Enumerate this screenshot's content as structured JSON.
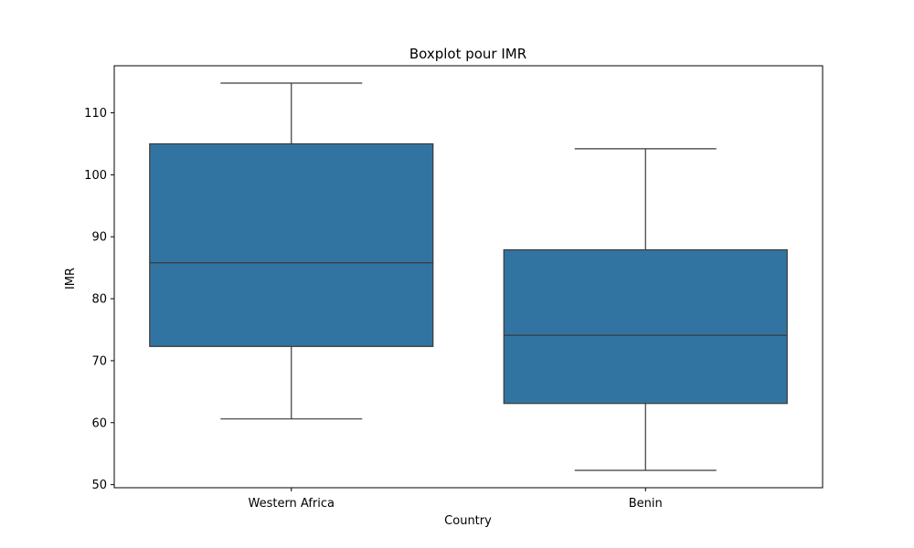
{
  "chart_data": {
    "type": "boxplot",
    "title": "Boxplot pour IMR",
    "xlabel": "Country",
    "ylabel": "IMR",
    "ylim": [
      49.5,
      117.6
    ],
    "yticks": [
      50,
      60,
      70,
      80,
      90,
      100,
      110
    ],
    "grid": false,
    "box_color": "#3274a1",
    "line_color": "#3a3a3a",
    "categories": [
      "Western Africa",
      "Benin"
    ],
    "boxes": [
      {
        "category": "Western Africa",
        "whisker_low": 60.6,
        "q1": 72.3,
        "median": 85.8,
        "q3": 105.0,
        "whisker_high": 114.8
      },
      {
        "category": "Benin",
        "whisker_low": 52.3,
        "q1": 63.1,
        "median": 74.1,
        "q3": 87.9,
        "whisker_high": 104.2
      }
    ]
  }
}
